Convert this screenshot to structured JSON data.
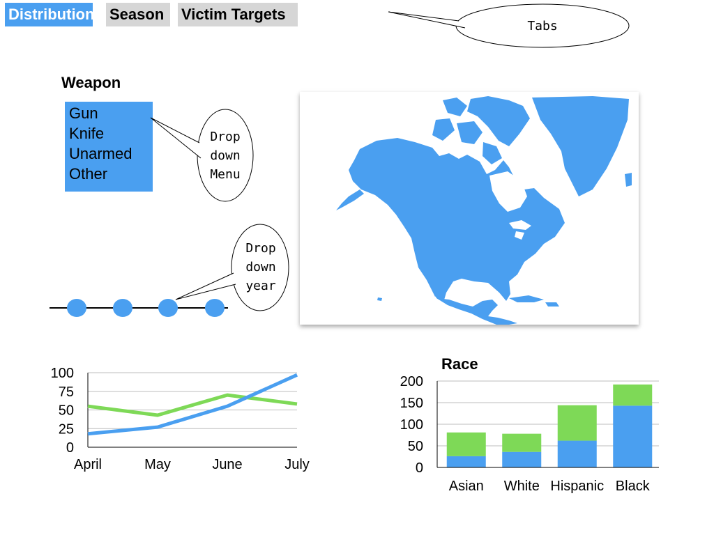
{
  "tabs": [
    {
      "label": "Distribution",
      "active": true
    },
    {
      "label": "Season",
      "active": false
    },
    {
      "label": "Victim Targets",
      "active": false
    }
  ],
  "callouts": {
    "tabs": "Tabs",
    "menu": [
      "Drop",
      "down",
      "Menu"
    ],
    "year": [
      "Drop",
      "down",
      "year"
    ]
  },
  "weapon": {
    "title": "Weapon",
    "items": [
      "Gun",
      "Knife",
      "Unarmed",
      "Other"
    ]
  },
  "year_slider": {
    "stops": 4
  },
  "map": {
    "region": "North America",
    "fill": "#4a9ff0"
  },
  "colors": {
    "blue": "#4a9ff0",
    "green": "#7ed957",
    "tab_inactive": "#d6d6d6"
  },
  "chart_data": [
    {
      "type": "line",
      "categories": [
        "April",
        "May",
        "June",
        "July"
      ],
      "ylim": [
        0,
        100
      ],
      "yticks": [
        0,
        25,
        50,
        75,
        100
      ],
      "series": [
        {
          "color": "#7ed957",
          "values": [
            55,
            43,
            70,
            58
          ]
        },
        {
          "color": "#4a9ff0",
          "values": [
            18,
            27,
            55,
            97
          ]
        }
      ]
    },
    {
      "type": "bar",
      "stacked": true,
      "title": "Race",
      "categories": [
        "Asian",
        "White",
        "Hispanic",
        "Black"
      ],
      "ylim": [
        0,
        200
      ],
      "yticks": [
        0,
        50,
        100,
        150,
        200
      ],
      "series": [
        {
          "color": "#4a9ff0",
          "values": [
            26,
            36,
            62,
            143
          ]
        },
        {
          "color": "#7ed957",
          "values": [
            55,
            42,
            82,
            49
          ]
        }
      ]
    }
  ]
}
